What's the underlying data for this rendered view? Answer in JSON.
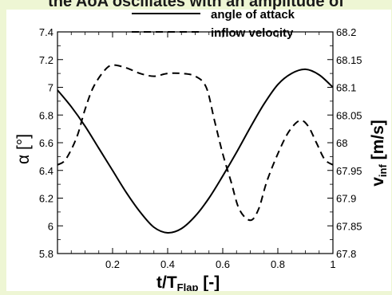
{
  "banner": {
    "text": "the AoA oscillates with an amplitude of"
  },
  "chart_data": {
    "type": "line",
    "xlabel": "t/T",
    "xlabel_sub": "Flap",
    "xlabel_tail": " [-]",
    "ylabel": "α [°]",
    "ylabel_right": "v",
    "ylabel_right_sub": "inf",
    "ylabel_right_tail": " [m/s]",
    "xlim": [
      0,
      1
    ],
    "ylim": [
      5.8,
      7.4
    ],
    "ylim_right": [
      67.8,
      68.2
    ],
    "x_ticks": [
      "0.2",
      "0.4",
      "0.6",
      "0.8",
      "1"
    ],
    "y_ticks": [
      "5.8",
      "6",
      "6.2",
      "6.4",
      "6.6",
      "6.8",
      "7",
      "7.2",
      "7.4"
    ],
    "y_ticks_right": [
      "67.8",
      "67.85",
      "67.9",
      "67.95",
      "68",
      "68.05",
      "68.1",
      "68.15",
      "68.2"
    ],
    "grid": false,
    "legend_position": "top-center",
    "series": [
      {
        "name": "angle of attack",
        "axis": "left",
        "style": "solid",
        "x": [
          0,
          0.05,
          0.1,
          0.15,
          0.2,
          0.25,
          0.3,
          0.35,
          0.4,
          0.45,
          0.5,
          0.55,
          0.6,
          0.65,
          0.7,
          0.75,
          0.8,
          0.85,
          0.9,
          0.95,
          1.0
        ],
        "values": [
          6.98,
          6.86,
          6.72,
          6.56,
          6.4,
          6.24,
          6.1,
          5.99,
          5.95,
          5.98,
          6.07,
          6.2,
          6.36,
          6.53,
          6.71,
          6.88,
          7.02,
          7.1,
          7.13,
          7.09,
          7.0
        ]
      },
      {
        "name": "inflow velocity",
        "axis": "right",
        "style": "dashed",
        "x": [
          0,
          0.03,
          0.07,
          0.1,
          0.13,
          0.17,
          0.2,
          0.25,
          0.3,
          0.35,
          0.4,
          0.45,
          0.5,
          0.54,
          0.57,
          0.6,
          0.63,
          0.66,
          0.7,
          0.73,
          0.76,
          0.8,
          0.84,
          0.88,
          0.91,
          0.94,
          0.97,
          1.0
        ],
        "values": [
          67.96,
          67.97,
          68.01,
          68.06,
          68.1,
          68.13,
          68.14,
          68.135,
          68.125,
          68.12,
          68.125,
          68.125,
          68.12,
          68.1,
          68.04,
          67.98,
          67.93,
          67.88,
          67.86,
          67.88,
          67.93,
          67.98,
          68.02,
          68.04,
          68.03,
          68.0,
          67.97,
          67.96
        ]
      }
    ]
  }
}
